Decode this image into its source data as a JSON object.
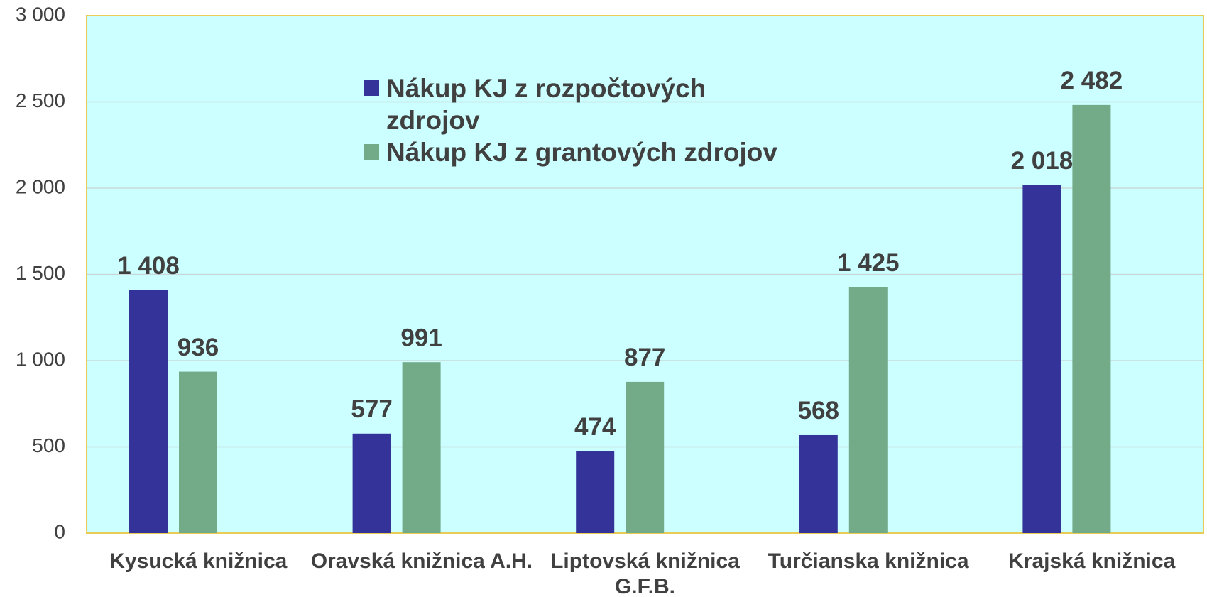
{
  "chart_data": {
    "type": "bar",
    "categories": [
      "Kysucká knižnica",
      "Oravská knižnica A.H.",
      "Liptovská knižnica G.F.B.",
      "Turčianska knižnica",
      "Krajská knižnica"
    ],
    "series": [
      {
        "name": "Nákup KJ z rozpočtových zdrojov",
        "color": "#333399",
        "values": [
          1408,
          577,
          474,
          568,
          2018
        ],
        "value_labels": [
          "1 408",
          "577",
          "474",
          "568",
          "2 018"
        ]
      },
      {
        "name": "Nákup KJ z grantových zdrojov",
        "color": "#73aa88",
        "values": [
          936,
          991,
          877,
          1425,
          2482
        ],
        "value_labels": [
          "936",
          "991",
          "877",
          "1 425",
          "2 482"
        ]
      }
    ],
    "ylim": [
      0,
      3000
    ],
    "yticks": [
      0,
      500,
      {
        "value": 1000,
        "label": "1 000"
      },
      {
        "value": 1500,
        "label": "1 500"
      },
      {
        "value": 2000,
        "label": "2 000"
      },
      {
        "value": 2500,
        "label": "2 500"
      },
      {
        "value": 3000,
        "label": "3 000"
      }
    ],
    "grid": true,
    "legend_position": "top"
  }
}
